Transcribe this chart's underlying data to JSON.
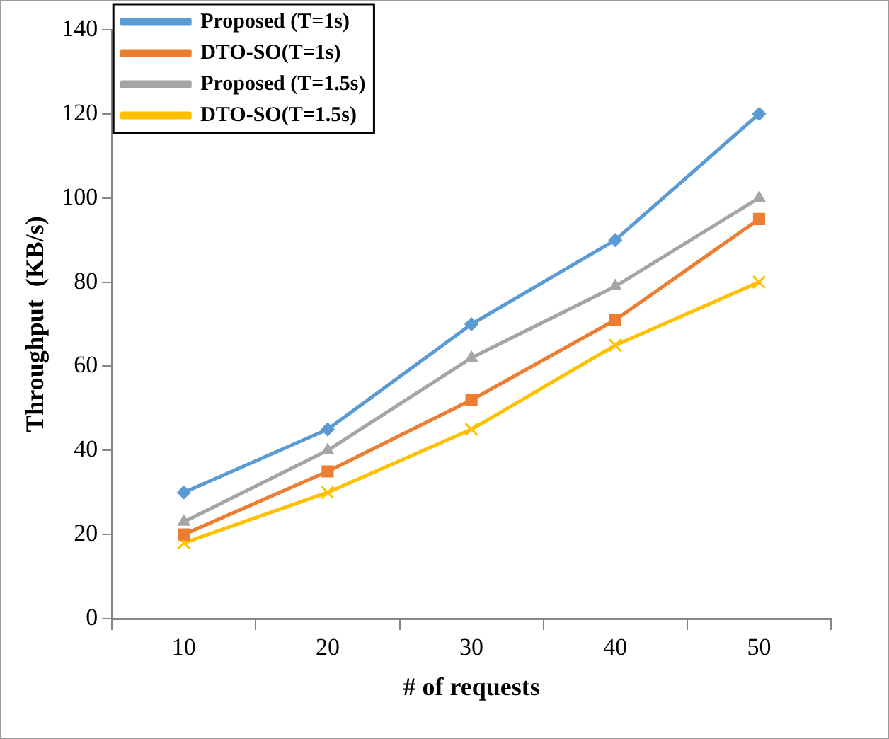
{
  "chart_data": {
    "type": "line",
    "xlabel": "# of requests",
    "ylabel": "Throughput  (KB/s)",
    "categories": [
      "10",
      "20",
      "30",
      "40",
      "50"
    ],
    "series": [
      {
        "name": "Proposed (T=1s)",
        "color": "#5b9bd5",
        "marker": "diamond",
        "values": [
          30,
          45,
          70,
          90,
          120
        ]
      },
      {
        "name": "DTO-SO(T=1s)",
        "color": "#ed7d31",
        "marker": "square",
        "values": [
          20,
          35,
          52,
          71,
          95
        ]
      },
      {
        "name": "Proposed (T=1.5s)",
        "color": "#a5a5a5",
        "marker": "triangle",
        "values": [
          23,
          40,
          62,
          79,
          100
        ]
      },
      {
        "name": "DTO-SO(T=1.5s)",
        "color": "#ffc000",
        "marker": "cross",
        "values": [
          18,
          30,
          45,
          65,
          80
        ]
      }
    ],
    "ylim": [
      0,
      140
    ],
    "yticks": [
      0,
      20,
      40,
      60,
      80,
      100,
      120,
      140
    ],
    "legend": "top left"
  }
}
